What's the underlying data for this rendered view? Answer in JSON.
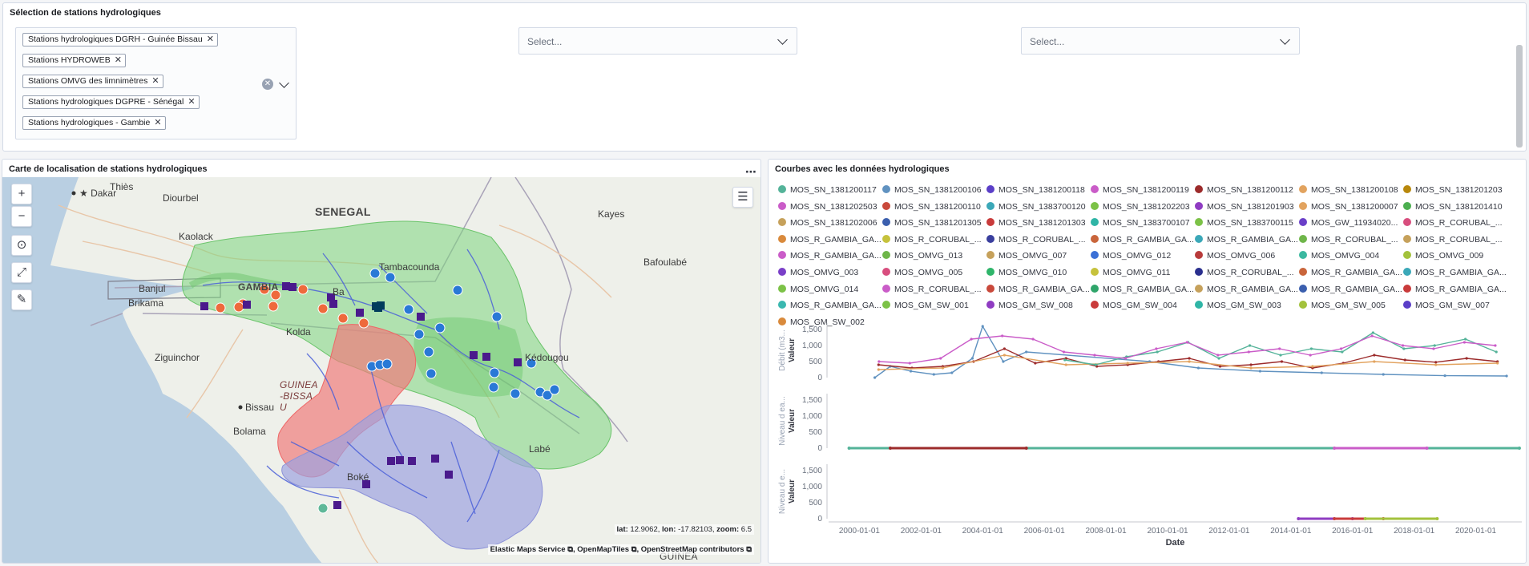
{
  "selection": {
    "title": "Sélection de stations hydrologiques",
    "selected": [
      "Stations hydrologiques DGRH - Guinée Bissau",
      "Stations HYDROWEB",
      "Stations OMVG des limnimètres",
      "Stations hydrologiques DGPRE - Sénégal",
      "Stations hydrologiques - Gambie"
    ],
    "select2_placeholder": "Select...",
    "select3_placeholder": "Select...",
    "remove_glyph": "✕",
    "clear_glyph": "✕"
  },
  "map": {
    "title": "Carte de localisation de stations hydrologiques",
    "menu_glyph": "⋯",
    "controls": {
      "zoom_in": "+",
      "zoom_out": "−",
      "locate": "⊙",
      "fullscreen": "⤢",
      "tools": "✎",
      "legend": "☰"
    },
    "labels": {
      "dakar": "Dakar",
      "thies": "Thiès",
      "diourbel": "Diourbel",
      "kaolack": "Kaolack",
      "banjul": "Banjul",
      "brikama": "Brikama",
      "kolda": "Kolda",
      "ziguinchor": "Ziguinchor",
      "bissau": "Bissau",
      "bolama": "Bolama",
      "boke": "Boké",
      "labe": "Labé",
      "kayes": "Kayes",
      "bafoulabe": "Bafoulabé",
      "tambacounda": "Tambacounda",
      "kedougou": "Kédougou",
      "basse": "Ba",
      "gambia_country": "GAMBIA",
      "senegal": "SENEGAL",
      "guinea_bissau": "GUINEA-BISSAU",
      "guinea": "GUINEA"
    },
    "coords": {
      "lat_label": "lat:",
      "lat": "12.9062",
      "lon_label": "lon:",
      "lon": "-17.82103",
      "zoom_label": "zoom:",
      "zoom": "6.5"
    },
    "attribution": [
      "Elastic Maps Service",
      "OpenMapTiles",
      "OpenStreetMap contributors"
    ],
    "colors": {
      "omvg": "#4a1a8c",
      "dgpre": "#2979d6",
      "gambia": "#ee6a3c",
      "dgrh": "#5fb899",
      "hydroweb": "#003b5c"
    }
  },
  "chart": {
    "title": "Courbes avec les données hydrologiques",
    "legend": [
      {
        "name": "MOS_SN_1381200117",
        "color": "#54b399"
      },
      {
        "name": "MOS_SN_1381200106",
        "color": "#6092c0"
      },
      {
        "name": "MOS_SN_1381200118",
        "color": "#5b3fc8"
      },
      {
        "name": "MOS_SN_1381200119",
        "color": "#ca5cc8"
      },
      {
        "name": "MOS_SN_1381200112",
        "color": "#9c2b2b"
      },
      {
        "name": "MOS_SN_1381200108",
        "color": "#e2a35f"
      },
      {
        "name": "MOS_SN_1381201203",
        "color": "#b8880c"
      },
      {
        "name": "MOS_SN_1381202503",
        "color": "#ca5cc8"
      },
      {
        "name": "MOS_SN_1381200110",
        "color": "#c9493b"
      },
      {
        "name": "MOS_SN_1383700120",
        "color": "#3ba8b8"
      },
      {
        "name": "MOS_SN_1381202203",
        "color": "#7cc247"
      },
      {
        "name": "MOS_SN_1381201903",
        "color": "#8f3cc2"
      },
      {
        "name": "MOS_SN_1381200007",
        "color": "#e2a35f"
      },
      {
        "name": "MOS_SN_1381201410",
        "color": "#4caf50"
      },
      {
        "name": "MOS_SN_1381202006",
        "color": "#c6a15b"
      },
      {
        "name": "MOS_SN_1381201305",
        "color": "#3b5fae"
      },
      {
        "name": "MOS_SN_1381201303",
        "color": "#c93b3b"
      },
      {
        "name": "MOS_SN_1383700107",
        "color": "#2fb5a6"
      },
      {
        "name": "MOS_SN_1383700115",
        "color": "#7cc247"
      },
      {
        "name": "MOS_GW_11934020...",
        "color": "#6a3fc8"
      },
      {
        "name": "MOS_R_CORUBAL_...",
        "color": "#d84e7e"
      },
      {
        "name": "MOS_R_GAMBIA_GA...",
        "color": "#d98a3c"
      },
      {
        "name": "MOS_R_CORUBAL_...",
        "color": "#c6c23c"
      },
      {
        "name": "MOS_R_CORUBAL_...",
        "color": "#3a3f9e"
      },
      {
        "name": "MOS_R_GAMBIA_GA...",
        "color": "#c9653b"
      },
      {
        "name": "MOS_R_GAMBIA_GA...",
        "color": "#3ba8b8"
      },
      {
        "name": "MOS_R_CORUBAL_...",
        "color": "#6fb64a"
      },
      {
        "name": "MOS_R_CORUBAL_...",
        "color": "#c6a15b"
      },
      {
        "name": "MOS_R_GAMBIA_GA...",
        "color": "#ca5cc8"
      },
      {
        "name": "MOS_OMVG_013",
        "color": "#6fb64a"
      },
      {
        "name": "MOS_OMVG_007",
        "color": "#c6a15b"
      },
      {
        "name": "MOS_OMVG_012",
        "color": "#3b70d6"
      },
      {
        "name": "MOS_OMVG_006",
        "color": "#b83b3b"
      },
      {
        "name": "MOS_OMVG_004",
        "color": "#3bb8a0"
      },
      {
        "name": "MOS_OMVG_009",
        "color": "#a3c23c"
      },
      {
        "name": "MOS_OMVG_003",
        "color": "#7a3fc8"
      },
      {
        "name": "MOS_OMVG_005",
        "color": "#d84e7e"
      },
      {
        "name": "MOS_OMVG_010",
        "color": "#2fb56a"
      },
      {
        "name": "MOS_OMVG_011",
        "color": "#c6c23c"
      },
      {
        "name": "MOS_R_CORUBAL_...",
        "color": "#2a2f8e"
      },
      {
        "name": "MOS_R_GAMBIA_GA...",
        "color": "#c9653b"
      },
      {
        "name": "MOS_R_GAMBIA_GA...",
        "color": "#3ba8b8"
      },
      {
        "name": "MOS_OMVG_014",
        "color": "#7cc247"
      },
      {
        "name": "MOS_R_CORUBAL_...",
        "color": "#ca5cc8"
      },
      {
        "name": "MOS_R_GAMBIA_GA...",
        "color": "#c9493b"
      },
      {
        "name": "MOS_R_GAMBIA_GA...",
        "color": "#2fa56a"
      },
      {
        "name": "MOS_R_GAMBIA_GA...",
        "color": "#c6a15b"
      },
      {
        "name": "MOS_R_GAMBIA_GA...",
        "color": "#3b5fae"
      },
      {
        "name": "MOS_R_GAMBIA_GA...",
        "color": "#c93b3b"
      },
      {
        "name": "MOS_R_GAMBIA_GA...",
        "color": "#3bb8b0"
      },
      {
        "name": "MOS_GM_SW_001",
        "color": "#7cc247"
      },
      {
        "name": "MOS_GM_SW_008",
        "color": "#8f3cc2"
      },
      {
        "name": "MOS_GM_SW_004",
        "color": "#c93b3b"
      },
      {
        "name": "MOS_GM_SW_003",
        "color": "#2fb5a6"
      },
      {
        "name": "MOS_GM_SW_005",
        "color": "#a3c23c"
      },
      {
        "name": "MOS_GM_SW_007",
        "color": "#5b3fc8"
      },
      {
        "name": "MOS_GM_SW_002",
        "color": "#d98a3c"
      }
    ]
  },
  "chart_data": {
    "type": "line",
    "xlabel": "Date",
    "x_ticks": [
      "2000-01-01",
      "2002-01-01",
      "2004-01-01",
      "2006-01-01",
      "2008-01-01",
      "2010-01-01",
      "2012-01-01",
      "2014-01-01",
      "2016-01-01",
      "2018-01-01",
      "2020-01-01"
    ],
    "xlim": [
      "1999-01-01",
      "2021-06-30"
    ],
    "panels": [
      {
        "ylabel": "Valeur",
        "side_label": "Débit (m3...",
        "ylim": [
          0,
          1700
        ],
        "y_ticks": [
          "0",
          "500",
          "1,000",
          "1,500"
        ],
        "series": [
          {
            "name": "MOS_SN_1381200106",
            "color": "#6092c0",
            "x": [
              "2000-07-01",
              "2001-01-01",
              "2001-09-01",
              "2002-06-01",
              "2003-01-01",
              "2003-09-01",
              "2004-01-01",
              "2004-09-01",
              "2005-06-01",
              "2009-06-01",
              "2011-01-01",
              "2013-01-01",
              "2015-01-01",
              "2017-01-01",
              "2019-01-01",
              "2021-01-01"
            ],
            "y": [
              0,
              350,
              200,
              100,
              150,
              600,
              1600,
              500,
              800,
              500,
              300,
              200,
              150,
              100,
              60,
              50
            ]
          },
          {
            "name": "MOS_SN_1381200112",
            "color": "#9c2b2b",
            "x": [
              "2000-08-15",
              "2001-09-15",
              "2002-09-15",
              "2003-09-15",
              "2004-09-15",
              "2005-09-15",
              "2006-09-15",
              "2007-09-15",
              "2008-09-15",
              "2009-09-15",
              "2010-09-15",
              "2011-09-15",
              "2012-09-15",
              "2013-09-15",
              "2014-09-15",
              "2015-09-15",
              "2016-09-15",
              "2017-09-15",
              "2018-09-15",
              "2019-09-15",
              "2020-09-15"
            ],
            "y": [
              400,
              300,
              350,
              500,
              900,
              450,
              600,
              350,
              400,
              500,
              600,
              350,
              400,
              500,
              300,
              450,
              700,
              550,
              480,
              600,
              500
            ]
          },
          {
            "name": "MOS_SN_1381200108",
            "color": "#e2a35f",
            "x": [
              "2000-08-15",
              "2002-09-15",
              "2004-09-15",
              "2006-09-15",
              "2008-09-15",
              "2010-09-15",
              "2012-09-15",
              "2014-09-15",
              "2016-09-15",
              "2018-09-15",
              "2020-09-15"
            ],
            "y": [
              250,
              300,
              700,
              400,
              450,
              500,
              300,
              350,
              500,
              400,
              450
            ]
          },
          {
            "name": "MOS_SN_1381200117",
            "color": "#54b399",
            "x": [
              "2006-09-01",
              "2007-09-01",
              "2008-09-01",
              "2009-09-01",
              "2010-09-01",
              "2011-09-01",
              "2012-09-01",
              "2013-09-01",
              "2014-09-01",
              "2015-09-01",
              "2016-09-01",
              "2017-09-01",
              "2018-09-01",
              "2019-09-01",
              "2020-09-01"
            ],
            "y": [
              550,
              400,
              650,
              800,
              1100,
              600,
              1000,
              700,
              900,
              800,
              1400,
              900,
              1000,
              1200,
              800
            ]
          },
          {
            "name": "MOS_SN_1381200119",
            "color": "#ca5cc8",
            "x": [
              "2000-08-20",
              "2001-08-20",
              "2002-08-20",
              "2003-08-20",
              "2004-08-20",
              "2005-08-20",
              "2006-08-20",
              "2007-08-20",
              "2008-08-20",
              "2009-08-20",
              "2010-08-20",
              "2011-08-20",
              "2012-08-20",
              "2013-08-20",
              "2014-08-20",
              "2015-08-20",
              "2016-08-20",
              "2017-08-20",
              "2018-08-20",
              "2019-08-20",
              "2020-08-20"
            ],
            "y": [
              500,
              450,
              600,
              1200,
              1300,
              1200,
              800,
              700,
              600,
              900,
              1100,
              700,
              800,
              900,
              700,
              900,
              1300,
              1000,
              900,
              1100,
              1000
            ]
          }
        ]
      },
      {
        "ylabel": "Valeur",
        "side_label": "Niveau d ea...",
        "ylim": [
          0,
          1700
        ],
        "y_ticks": [
          "0",
          "500",
          "1,000",
          "1,500"
        ],
        "series": [
          {
            "name": "MOS_SN_1381200117",
            "color": "#54b399",
            "x": [
              "1999-09-01",
              "2021-06-01"
            ],
            "y": [
              0,
              0
            ]
          },
          {
            "name": "MOS_SN_1381200112",
            "color": "#9c2b2b",
            "x": [
              "2001-01-01",
              "2005-06-01"
            ],
            "y": [
              0,
              0
            ]
          },
          {
            "name": "MOS_SN_1381200119",
            "color": "#ca5cc8",
            "x": [
              "2015-06-01",
              "2018-06-01"
            ],
            "y": [
              0,
              0
            ]
          }
        ]
      },
      {
        "ylabel": "Valeur",
        "side_label": "Niveau d e...",
        "ylim": [
          0,
          1700
        ],
        "y_ticks": [
          "0",
          "500",
          "1,000",
          "1,500"
        ],
        "series": [
          {
            "name": "MOS_GM_SW_008",
            "color": "#8f3cc2",
            "x": [
              "2014-04-01",
              "2016-01-01"
            ],
            "y": [
              0,
              0
            ]
          },
          {
            "name": "MOS_GM_SW_004",
            "color": "#c93b3b",
            "x": [
              "2015-06-01",
              "2017-01-01"
            ],
            "y": [
              0,
              0
            ]
          },
          {
            "name": "MOS_GM_SW_005",
            "color": "#a3c23c",
            "x": [
              "2016-06-01",
              "2018-10-01"
            ],
            "y": [
              0,
              0
            ]
          }
        ]
      }
    ],
    "grid": false,
    "legend_position": "top"
  }
}
